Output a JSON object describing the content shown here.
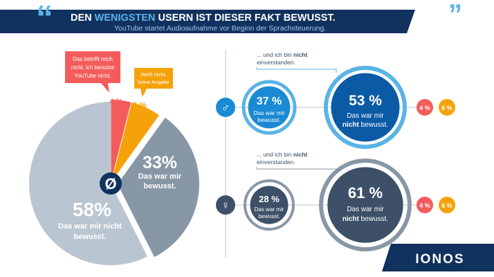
{
  "header": {
    "title_part1": "DEN ",
    "title_highlight": "WENIGSTEN",
    "title_part2": " USERN IST DIESER FAKT BEWUSST.",
    "subtitle": "YouTube startet Audioaufnahme vor Beginn der Sprachsteuerung."
  },
  "brand": {
    "logo_text": "IONOS"
  },
  "colors": {
    "navy": "#11315e",
    "light_blue": "#5ab4e5",
    "mid_blue": "#1a8ad4",
    "dark_blue": "#0a5aa6",
    "grey_light": "#b9c6d2",
    "grey_mid": "#8897a6",
    "grey_dark": "#3d5068",
    "red": "#f45c5c",
    "orange": "#f5a20a",
    "white": "#ffffff"
  },
  "chart_data": [
    {
      "type": "pie",
      "title": "Gesamt",
      "center_symbol": "Ø",
      "slices": [
        {
          "label_pct": "58%",
          "value": 58,
          "label_line1": "Das war mir ",
          "label_bold": "nicht",
          "label_line2": "bewusst."
        },
        {
          "label_pct": "33%",
          "value": 33,
          "label_line1": "Das war mir",
          "label_line2": "bewusst."
        },
        {
          "label_pct": "4 %",
          "value": 4,
          "callout_lines": [
            "Das betrifft mich",
            "nicht, ich benutze",
            "YouTube nicht."
          ]
        },
        {
          "label_pct": "6 %",
          "value": 6,
          "callout_lines": [
            "Weiß nicht,",
            "keine Angabe"
          ]
        }
      ]
    },
    {
      "type": "bubble",
      "group": "Männer",
      "symbol": "♂",
      "annotation_line1_pre": "... und ich bin ",
      "annotation_line1_bold": "nicht",
      "annotation_line2": "einverstanden.",
      "aware": {
        "pct": "37 %",
        "value": 37,
        "line1": "Das war mir",
        "line2": "bewusst."
      },
      "unaware": {
        "pct": "53 %",
        "value": 53,
        "line1": "Das war mir",
        "line2_bold": "nicht",
        "line2_rest": " bewusst."
      },
      "small": [
        {
          "pct": "4 %",
          "value": 4
        },
        {
          "pct": "6 %",
          "value": 6
        }
      ]
    },
    {
      "type": "bubble",
      "group": "Frauen",
      "symbol": "♀",
      "annotation_line1_pre": "... und ich bin ",
      "annotation_line1_bold": "nicht",
      "annotation_line2": "einverstanden.",
      "aware": {
        "pct": "28 %",
        "value": 28,
        "line1": "Das war mir",
        "line2": "bewusst."
      },
      "unaware": {
        "pct": "61 %",
        "value": 61,
        "line1": "Das war mir",
        "line2_bold": "nicht",
        "line2_rest": " bewusst."
      },
      "small": [
        {
          "pct": "4 %",
          "value": 4
        },
        {
          "pct": "6 %",
          "value": 6
        }
      ]
    }
  ]
}
